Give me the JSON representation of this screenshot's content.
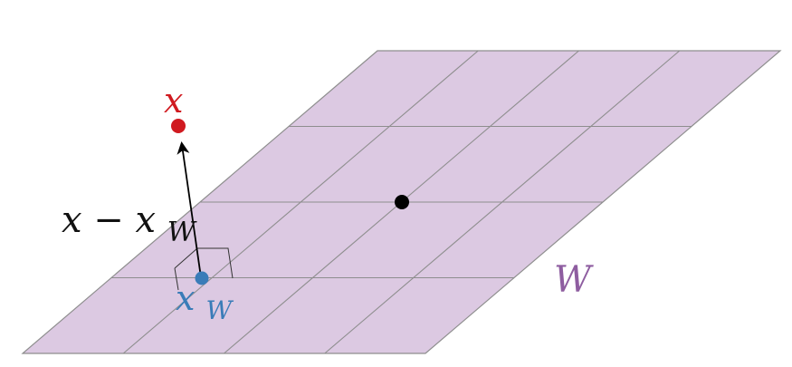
{
  "diagram": {
    "labels": {
      "x": "x",
      "x_minus_xw_main": "x − x",
      "x_minus_xw_sub": "W",
      "xw_main": "x",
      "xw_sub": "W",
      "W": "W"
    },
    "colors": {
      "plane_fill": "#DCC9E2",
      "grid_line": "#8E8E8E",
      "x_point": "#D01A20",
      "xw_point": "#3A7CB8",
      "center_point": "#000000",
      "arrow": "#000000",
      "W_label": "#8E5DA0",
      "text_dark": "#111111"
    }
  }
}
